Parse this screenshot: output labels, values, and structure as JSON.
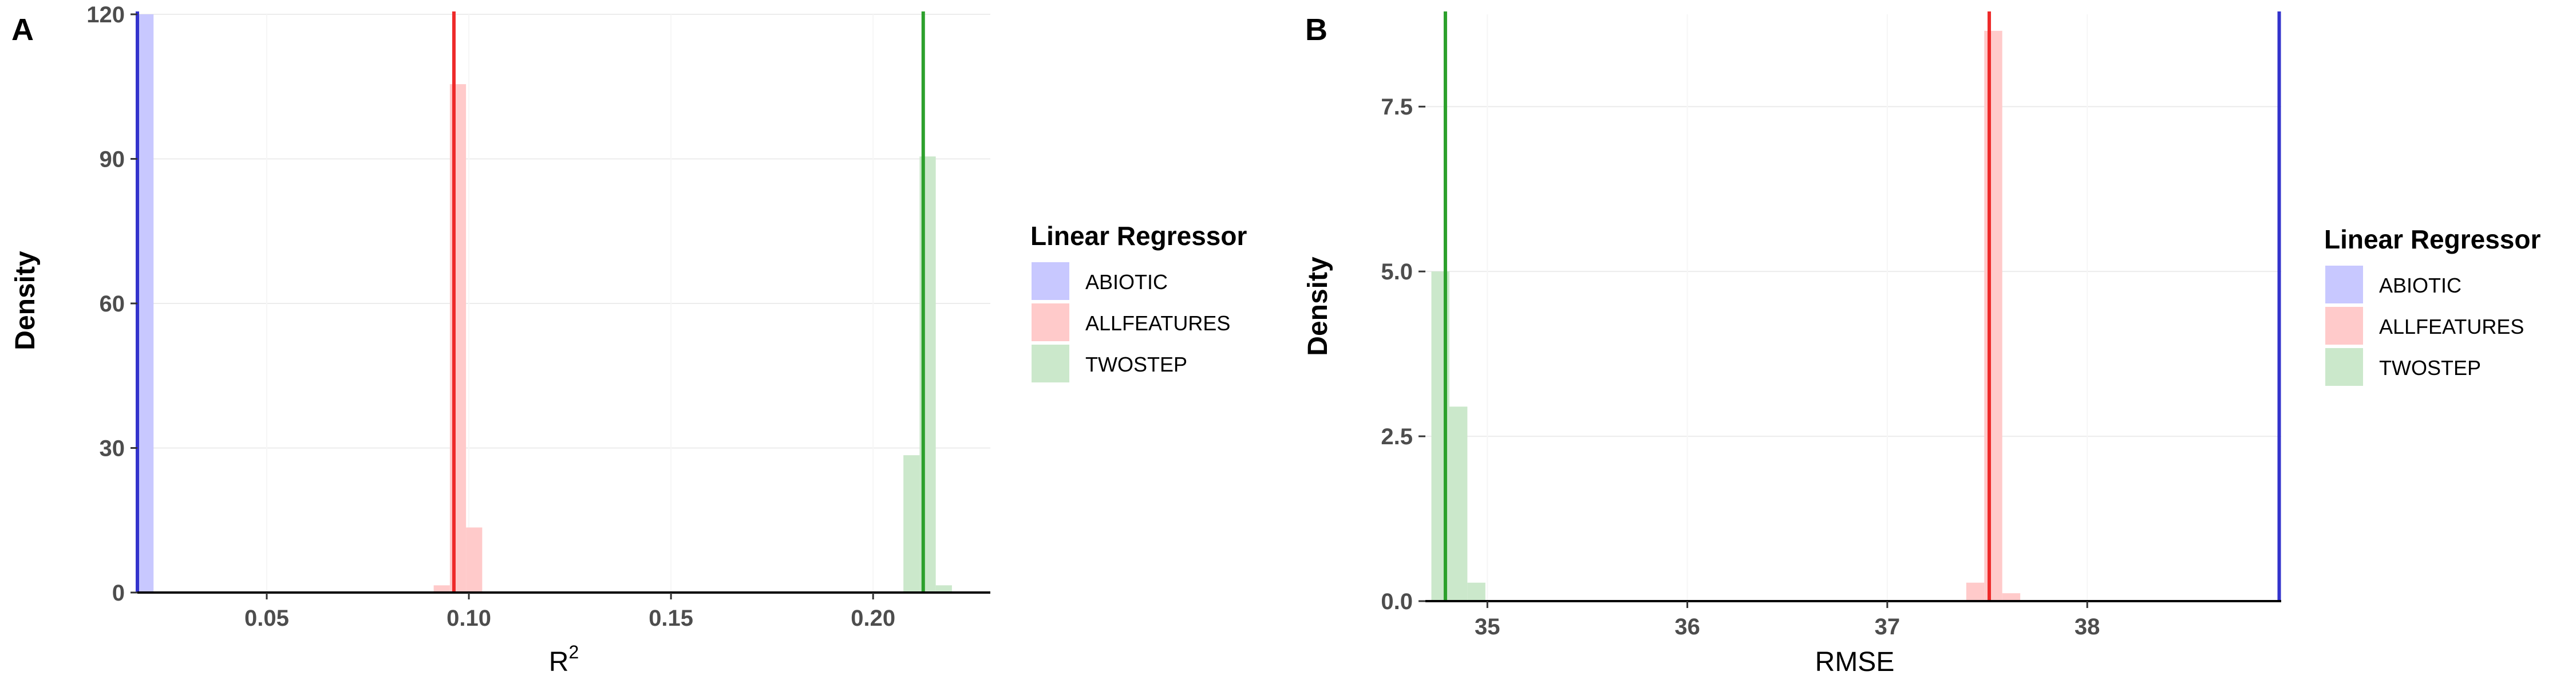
{
  "colors": {
    "abiotic_fill": "#c8c8ff",
    "abiotic_line": "#3333cc",
    "allfeatures_fill": "#ffcaca",
    "allfeatures_line": "#ee2a2a",
    "twostep_fill": "#cbe8cb",
    "twostep_line": "#2ca02c",
    "grid": "#ececec",
    "axis": "#000000"
  },
  "chart_data": [
    {
      "panel": "A",
      "type": "histogram",
      "xlabel_main": "R",
      "xlabel_sup": "2",
      "ylabel": "Density",
      "xlim": [
        0.018,
        0.229
      ],
      "ylim": [
        0,
        120
      ],
      "xticks": [
        0.05,
        0.1,
        0.15,
        0.2
      ],
      "xtick_labels": [
        "0.05",
        "0.10",
        "0.15",
        "0.20"
      ],
      "yticks": [
        0,
        30,
        60,
        90,
        120
      ],
      "ytick_labels": [
        "0",
        "30",
        "60",
        "90",
        "120"
      ],
      "legend": {
        "title": "Linear Regressor",
        "items": [
          "ABIOTIC",
          "ALLFEATURES",
          "TWOSTEP"
        ]
      },
      "series": [
        {
          "name": "ABIOTIC",
          "bars": [
            {
              "x0": 0.018,
              "x1": 0.022,
              "density": 120
            }
          ],
          "vline": 0.018
        },
        {
          "name": "ALLFEATURES",
          "bars": [
            {
              "x0": 0.0913,
              "x1": 0.0953,
              "density": 1.5
            },
            {
              "x0": 0.0953,
              "x1": 0.0993,
              "density": 105.5
            },
            {
              "x0": 0.0993,
              "x1": 0.1033,
              "density": 13.5
            }
          ],
          "vline": 0.0963
        },
        {
          "name": "TWOSTEP",
          "bars": [
            {
              "x0": 0.2075,
              "x1": 0.2115,
              "density": 28.5
            },
            {
              "x0": 0.2115,
              "x1": 0.2155,
              "density": 90.5
            },
            {
              "x0": 0.2155,
              "x1": 0.2195,
              "density": 1.5
            }
          ],
          "vline": 0.2124
        }
      ]
    },
    {
      "panel": "B",
      "type": "histogram",
      "xlabel_main": "RMSE",
      "xlabel_sup": "",
      "ylabel": "Density",
      "xlim": [
        34.69,
        38.97
      ],
      "ylim": [
        0,
        8.9
      ],
      "xticks": [
        35,
        36,
        37,
        38
      ],
      "xtick_labels": [
        "35",
        "36",
        "37",
        "38"
      ],
      "yticks": [
        0,
        2.5,
        5.0,
        7.5
      ],
      "ytick_labels": [
        "0.0",
        "2.5",
        "5.0",
        "7.5"
      ],
      "legend": {
        "title": "Linear Regressor",
        "items": [
          "ABIOTIC",
          "ALLFEATURES",
          "TWOSTEP"
        ]
      },
      "series": [
        {
          "name": "ABIOTIC",
          "bars": [],
          "vline": 38.96
        },
        {
          "name": "ALLFEATURES",
          "bars": [
            {
              "x0": 37.395,
              "x1": 37.485,
              "density": 0.28
            },
            {
              "x0": 37.485,
              "x1": 37.575,
              "density": 8.65
            },
            {
              "x0": 37.575,
              "x1": 37.665,
              "density": 0.12
            }
          ],
          "vline": 37.51
        },
        {
          "name": "TWOSTEP",
          "bars": [
            {
              "x0": 34.72,
              "x1": 34.81,
              "density": 5.0
            },
            {
              "x0": 34.81,
              "x1": 34.9,
              "density": 2.95
            },
            {
              "x0": 34.9,
              "x1": 34.99,
              "density": 0.28
            }
          ],
          "vline": 34.79
        }
      ]
    }
  ]
}
